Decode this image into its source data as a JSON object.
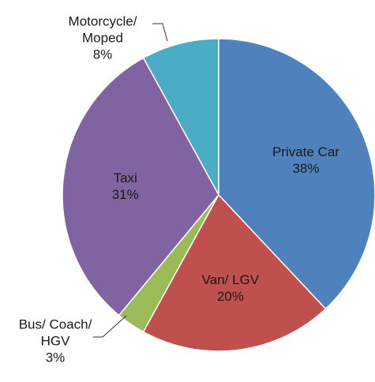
{
  "chart_data": {
    "type": "pie",
    "categories": [
      "Private Car",
      "Van/ LGV",
      "Bus/ Coach/\nHGV",
      "Taxi",
      "Motorcycle/\nMoped"
    ],
    "values": [
      38,
      20,
      3,
      31,
      8
    ],
    "value_labels": [
      "38%",
      "20%",
      "3%",
      "31%",
      "8%"
    ],
    "colors": [
      "#4f81bd",
      "#c0504d",
      "#9bbb59",
      "#8064a2",
      "#4bacc6"
    ]
  }
}
